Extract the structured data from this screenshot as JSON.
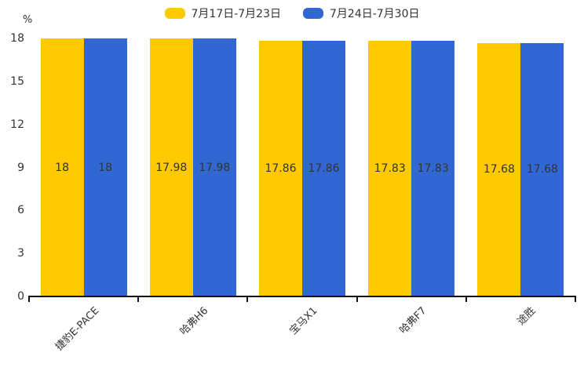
{
  "chart_data": {
    "type": "bar",
    "title": "",
    "categories": [
      "捷豹E-PACE",
      "哈弗H6",
      "宝马X1",
      "哈弗F7",
      "途胜"
    ],
    "series": [
      {
        "name": "7月17日-7月23日",
        "color": "#FFC900",
        "values": [
          18,
          17.98,
          17.86,
          17.83,
          17.68
        ]
      },
      {
        "name": "7月24日-7月30日",
        "color": "#3067D2",
        "values": [
          18,
          17.98,
          17.86,
          17.83,
          17.68
        ]
      }
    ],
    "value_labels_shown": [
      "18",
      "17.98",
      "17.86",
      "17.83",
      "17.68"
    ],
    "ylabel": "%",
    "yticks": [
      0,
      3,
      6,
      9,
      12,
      15,
      18
    ],
    "ylim": [
      0,
      18
    ],
    "grid": false,
    "legend_position": "top",
    "bar_label_color": "#333333",
    "axis_color": "#111111",
    "tick_label_color": "#333333"
  }
}
